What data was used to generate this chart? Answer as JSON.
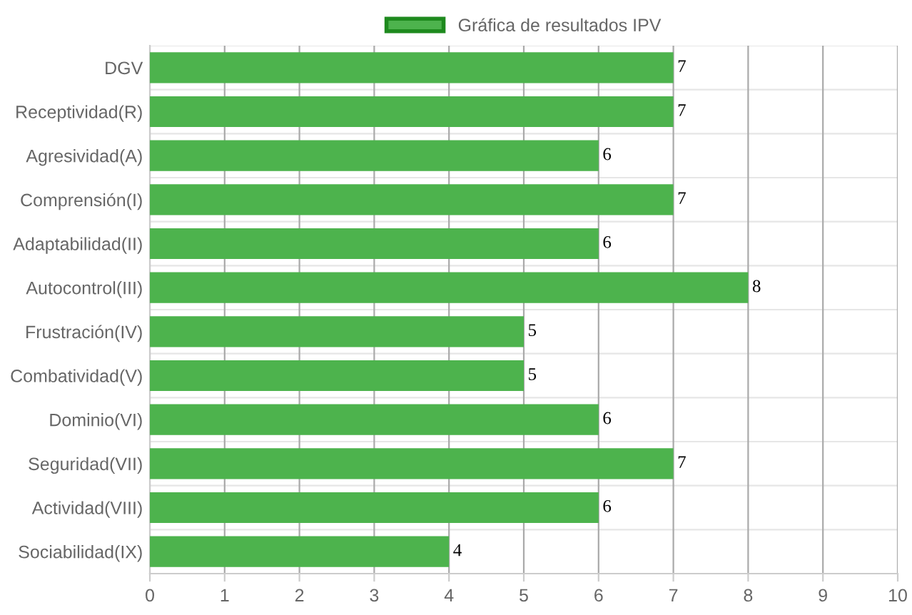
{
  "chart_data": {
    "type": "bar",
    "orientation": "horizontal",
    "categories": [
      "DGV",
      "Receptividad(R)",
      "Agresividad(A)",
      "Comprensión(I)",
      "Adaptabilidad(II)",
      "Autocontrol(III)",
      "Frustración(IV)",
      "Combatividad(V)",
      "Dominio(VI)",
      "Seguridad(VII)",
      "Actividad(VIII)",
      "Sociabilidad(IX)"
    ],
    "series": [
      {
        "name": "Gráfica de resultados IPV",
        "color": "#4db34d",
        "values": [
          7,
          7,
          6,
          7,
          6,
          8,
          5,
          5,
          6,
          7,
          6,
          4
        ]
      }
    ],
    "xlim": [
      0,
      10
    ],
    "xticks": [
      0,
      1,
      2,
      3,
      4,
      5,
      6,
      7,
      8,
      9,
      10
    ],
    "grid": true,
    "legend": "top",
    "data_labels": true
  }
}
